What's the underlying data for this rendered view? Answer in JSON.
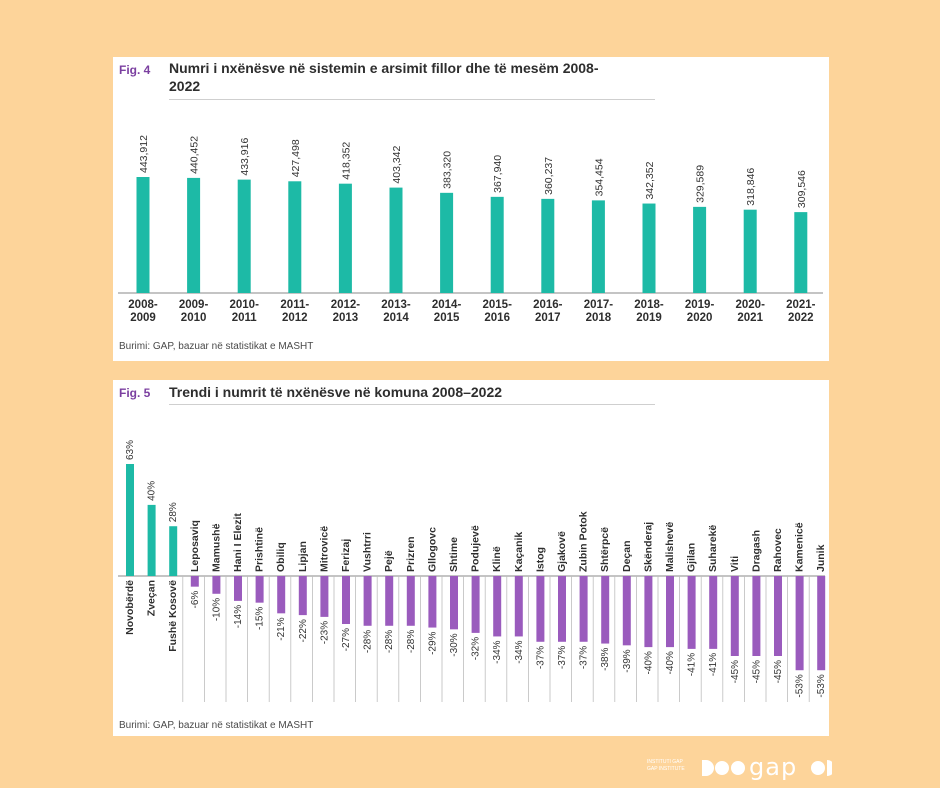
{
  "fig4": {
    "tag": "Fig. 4",
    "title_line1": "Numri i nxënësve në sistemin e arsimit fillor dhe të mesëm 2008-",
    "title_line2": "2022",
    "source": "Burimi: GAP, bazuar në statistikat e MASHT"
  },
  "fig5": {
    "tag": "Fig. 5",
    "title": "Trendi i numrit të nxënësve në komuna 2008–2022",
    "source": "Burimi: GAP, bazuar në statistikat e MASHT"
  },
  "logo": {
    "small_line1": "INSTITUTI GAP",
    "small_line2": "GAP INSTITUTE",
    "word": "gap"
  },
  "colors": {
    "teal": "#1dbaa6",
    "purple": "#9a5bbd",
    "background": "#fdd49a",
    "accent": "#7b3fa0"
  },
  "chart_data": [
    {
      "type": "bar",
      "title": "Numri i nxënësve në sistemin e arsimit fillor dhe të mesëm 2008-2022",
      "categories": [
        "2008-\n2009",
        "2009-\n2010",
        "2010-\n2011",
        "2011-\n2012",
        "2012-\n2013",
        "2013-\n2014",
        "2014-\n2015",
        "2015-\n2016",
        "2016-\n2017",
        "2017-\n2018",
        "2018-\n2019",
        "2019-\n2020",
        "2020-\n2021",
        "2021-\n2022"
      ],
      "values": [
        443912,
        440452,
        433916,
        427498,
        418352,
        403342,
        383320,
        367940,
        360237,
        354454,
        342352,
        329589,
        318846,
        309546
      ],
      "value_labels": [
        "443,912",
        "440,452",
        "433,916",
        "427,498",
        "418,352",
        "403,342",
        "383,320",
        "367,940",
        "360,237",
        "354,454",
        "342,352",
        "329,589",
        "318,846",
        "309,546"
      ],
      "ylim": [
        0,
        600000
      ],
      "color": "#1dbaa6",
      "grid": false
    },
    {
      "type": "bar",
      "title": "Trendi i numrit të nxënësve në komuna 2008–2022",
      "categories": [
        "Novobërdë",
        "Zveçan",
        "Fushë Kosovë",
        "Leposaviq",
        "Mamushë",
        "Hani I Elezit",
        "Prishtinë",
        "Obiliq",
        "Lipjan",
        "Mitrovicë",
        "Ferizaj",
        "Vushtrri",
        "Pejë",
        "Prizren",
        "Gllogovc",
        "Shtime",
        "Podujevë",
        "Klinë",
        "Kaçanik",
        "Istog",
        "Gjakovë",
        "Zubin Potok",
        "Shtërpcë",
        "Deçan",
        "Skënderaj",
        "Malishevë",
        "Gjilan",
        "Suharekë",
        "Viti",
        "Dragash",
        "Rahovec",
        "Kamenicë",
        "Junik"
      ],
      "values": [
        63,
        40,
        28,
        -6,
        -10,
        -14,
        -15,
        -21,
        -22,
        -23,
        -27,
        -28,
        -28,
        -28,
        -29,
        -30,
        -32,
        -34,
        -34,
        -37,
        -37,
        -37,
        -38,
        -39,
        -40,
        -40,
        -41,
        -41,
        -45,
        -45,
        -45,
        -53,
        -53
      ],
      "value_labels": [
        "63%",
        "40%",
        "28%",
        "-6%",
        "-10%",
        "-14%",
        "-15%",
        "-21%",
        "-22%",
        "-23%",
        "-27%",
        "-28%",
        "-28%",
        "-28%",
        "-29%",
        "-30%",
        "-32%",
        "-34%",
        "-34%",
        "-37%",
        "-37%",
        "-37%",
        "-38%",
        "-39%",
        "-40%",
        "-40%",
        "-41%",
        "-41%",
        "-45%",
        "-45%",
        "-45%",
        "-53%",
        "-53%"
      ],
      "ylim": [
        -60,
        70
      ],
      "positive_color": "#1dbaa6",
      "negative_color": "#9a5bbd",
      "grid": false
    }
  ]
}
